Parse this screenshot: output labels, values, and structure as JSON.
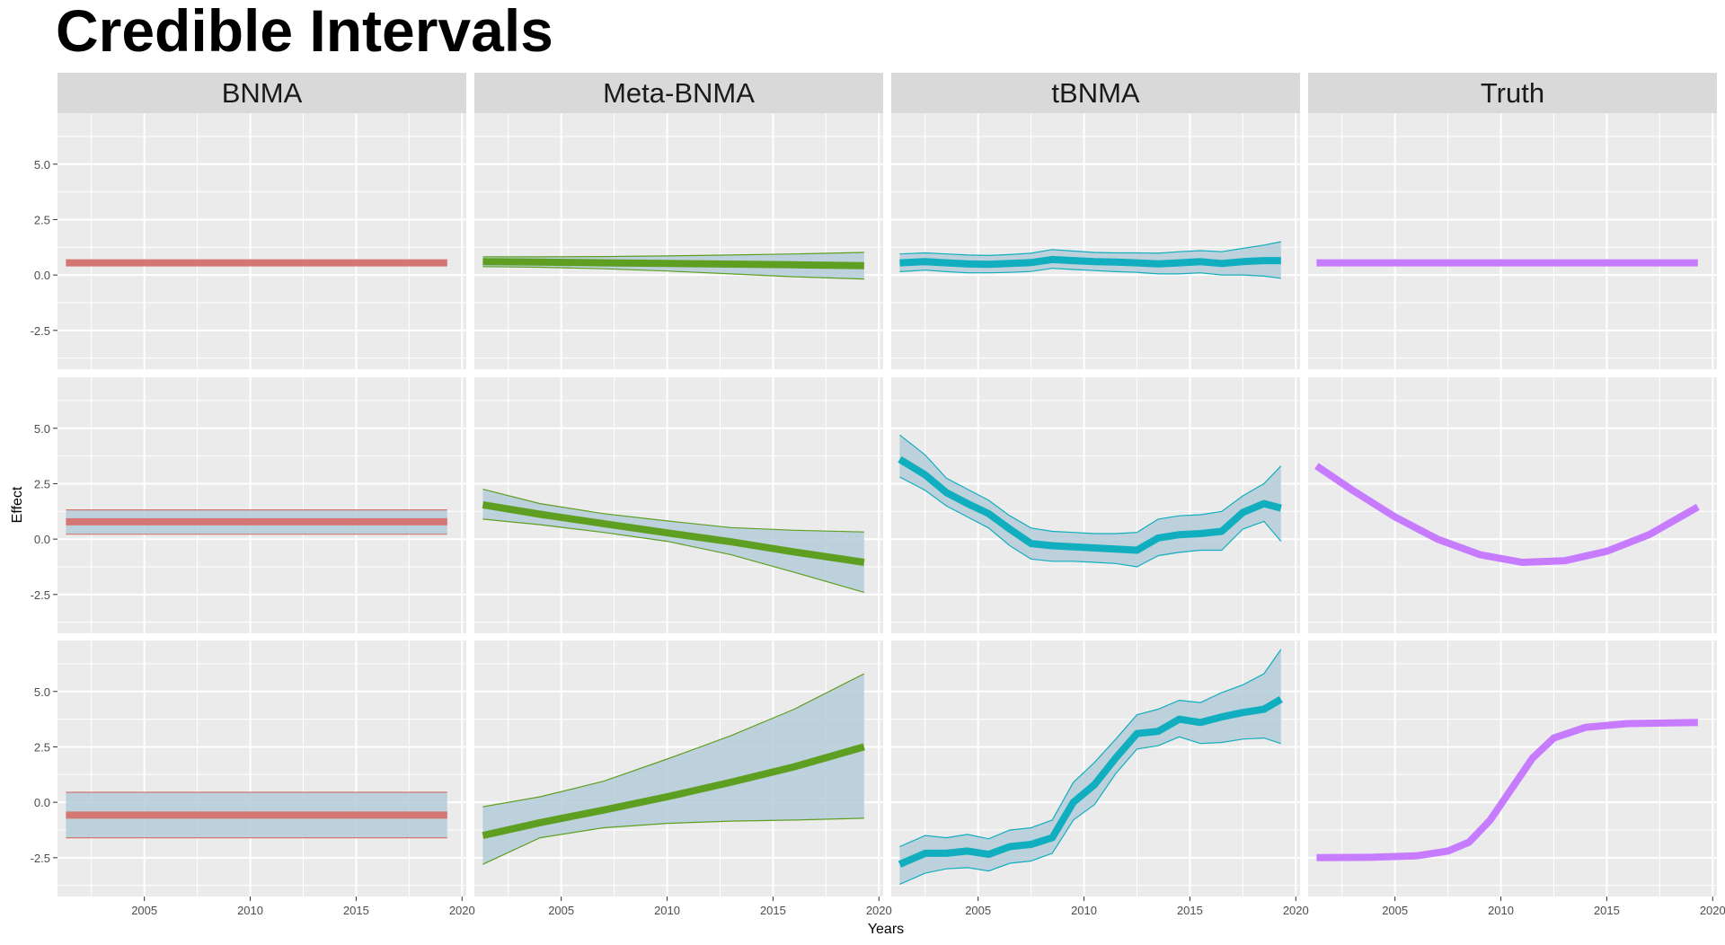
{
  "title": "Credible Intervals",
  "chart_data": {
    "type": "line",
    "title": "Credible Intervals",
    "xlabel": "Years",
    "ylabel": "Effect",
    "xlim": [
      2000.9,
      2020.2
    ],
    "ylim": [
      -4.25,
      7.3
    ],
    "x_ticks": [
      2005,
      2010,
      2015,
      2020
    ],
    "x_tick_labels": [
      "2005",
      "2010",
      "2015",
      "2020"
    ],
    "y_ticks": [
      -2.5,
      0,
      2.5,
      5
    ],
    "y_tick_labels": [
      "-2.5",
      "0.0",
      "2.5",
      "5.0"
    ],
    "grid": true,
    "legend": "none",
    "facet_columns": [
      "BNMA",
      "Meta-BNMA",
      "tBNMA",
      "Truth"
    ],
    "colors": {
      "BNMA": "#D47774",
      "Meta-BNMA": "#5E9F22",
      "tBNMA": "#10AEBE",
      "Truth": "#C77CFF",
      "band_fill": "#B4CCD8",
      "panel_bg": "#EBEBEB",
      "strip_bg": "#D9D9D9"
    },
    "rows": [
      {
        "BNMA": {
          "x": [
            2001.3,
            2019.3
          ],
          "y": [
            0.55,
            0.55
          ]
        },
        "Meta-BNMA": {
          "x": [
            2001.3,
            2004,
            2007,
            2010,
            2013,
            2016,
            2019.3
          ],
          "y": [
            0.6,
            0.58,
            0.55,
            0.52,
            0.49,
            0.46,
            0.42
          ],
          "lower": [
            0.38,
            0.35,
            0.28,
            0.18,
            0.05,
            -0.08,
            -0.18
          ],
          "upper": [
            0.82,
            0.82,
            0.83,
            0.86,
            0.9,
            0.95,
            1.02
          ]
        },
        "tBNMA": {
          "x": [
            2001.3,
            2002.5,
            2003.5,
            2004.5,
            2005.5,
            2006.5,
            2007.5,
            2008.5,
            2009.5,
            2010.5,
            2011.5,
            2012.5,
            2013.5,
            2014.5,
            2015.5,
            2016.5,
            2017.5,
            2018.5,
            2019.3
          ],
          "y": [
            0.55,
            0.6,
            0.55,
            0.5,
            0.48,
            0.52,
            0.56,
            0.7,
            0.65,
            0.6,
            0.58,
            0.55,
            0.5,
            0.55,
            0.6,
            0.52,
            0.6,
            0.65,
            0.65
          ],
          "lower": [
            0.15,
            0.22,
            0.15,
            0.1,
            0.1,
            0.12,
            0.16,
            0.3,
            0.25,
            0.2,
            0.15,
            0.12,
            0.05,
            0.05,
            0.1,
            0.0,
            0.0,
            -0.05,
            -0.15
          ],
          "upper": [
            0.95,
            1.0,
            0.95,
            0.9,
            0.88,
            0.92,
            0.98,
            1.15,
            1.08,
            1.02,
            1.0,
            1.0,
            0.98,
            1.05,
            1.1,
            1.05,
            1.2,
            1.35,
            1.5
          ]
        },
        "Truth": {
          "x": [
            2001.3,
            2019.3
          ],
          "y": [
            0.55,
            0.55
          ]
        }
      },
      {
        "BNMA": {
          "x": [
            2001.3,
            2019.3
          ],
          "y": [
            0.78,
            0.78
          ],
          "lower": [
            0.22,
            0.22
          ],
          "upper": [
            1.32,
            1.32
          ]
        },
        "Meta-BNMA": {
          "x": [
            2001.3,
            2004,
            2007,
            2010,
            2013,
            2016,
            2019.3
          ],
          "y": [
            1.55,
            1.12,
            0.7,
            0.28,
            -0.12,
            -0.58,
            -1.05
          ],
          "lower": [
            0.9,
            0.65,
            0.3,
            -0.1,
            -0.7,
            -1.5,
            -2.4
          ],
          "upper": [
            2.25,
            1.6,
            1.15,
            0.82,
            0.52,
            0.4,
            0.32
          ]
        },
        "tBNMA": {
          "x": [
            2001.3,
            2002.5,
            2003.5,
            2004.5,
            2005.5,
            2006.5,
            2007.5,
            2008.5,
            2009.5,
            2010.5,
            2011.5,
            2012.5,
            2013.5,
            2014.5,
            2015.5,
            2016.5,
            2017.5,
            2018.5,
            2019.3
          ],
          "y": [
            3.6,
            2.9,
            2.1,
            1.6,
            1.15,
            0.45,
            -0.2,
            -0.3,
            -0.35,
            -0.4,
            -0.45,
            -0.5,
            0.05,
            0.2,
            0.25,
            0.35,
            1.2,
            1.6,
            1.4
          ],
          "lower": [
            2.8,
            2.2,
            1.5,
            1.0,
            0.5,
            -0.3,
            -0.9,
            -1.0,
            -1.0,
            -1.05,
            -1.1,
            -1.25,
            -0.75,
            -0.6,
            -0.5,
            -0.5,
            0.45,
            0.8,
            -0.1
          ],
          "upper": [
            4.7,
            3.8,
            2.75,
            2.25,
            1.75,
            1.05,
            0.5,
            0.35,
            0.3,
            0.25,
            0.25,
            0.3,
            0.9,
            1.05,
            1.1,
            1.25,
            1.95,
            2.5,
            3.3
          ]
        },
        "Truth": {
          "x": [
            2001.3,
            2003,
            2005,
            2007,
            2009,
            2011,
            2013,
            2015,
            2017,
            2019.3
          ],
          "y": [
            3.3,
            2.2,
            1.0,
            0.0,
            -0.7,
            -1.05,
            -0.98,
            -0.55,
            0.2,
            1.45
          ]
        }
      },
      {
        "BNMA": {
          "x": [
            2001.3,
            2019.3
          ],
          "y": [
            -0.58,
            -0.58
          ],
          "lower": [
            -1.6,
            -1.6
          ],
          "upper": [
            0.45,
            0.45
          ]
        },
        "Meta-BNMA": {
          "x": [
            2001.3,
            2004,
            2007,
            2010,
            2013,
            2016,
            2019.3
          ],
          "y": [
            -1.5,
            -0.92,
            -0.35,
            0.25,
            0.9,
            1.6,
            2.5
          ],
          "lower": [
            -2.8,
            -1.6,
            -1.15,
            -0.95,
            -0.85,
            -0.8,
            -0.72
          ],
          "upper": [
            -0.2,
            0.25,
            0.95,
            1.95,
            3.0,
            4.2,
            5.8
          ]
        },
        "tBNMA": {
          "x": [
            2001.3,
            2002.5,
            2003.5,
            2004.5,
            2005.5,
            2006.5,
            2007.5,
            2008.5,
            2009.5,
            2010.5,
            2011.5,
            2012.5,
            2013.5,
            2014.5,
            2015.5,
            2016.5,
            2017.5,
            2018.5,
            2019.3
          ],
          "y": [
            -2.8,
            -2.3,
            -2.3,
            -2.2,
            -2.35,
            -2.0,
            -1.9,
            -1.6,
            0.0,
            0.8,
            2.0,
            3.1,
            3.2,
            3.75,
            3.6,
            3.85,
            4.05,
            4.2,
            4.65
          ],
          "lower": [
            -3.7,
            -3.2,
            -3.0,
            -2.95,
            -3.1,
            -2.75,
            -2.65,
            -2.3,
            -0.8,
            -0.1,
            1.3,
            2.4,
            2.55,
            2.95,
            2.65,
            2.7,
            2.85,
            2.9,
            2.65
          ],
          "upper": [
            -2.0,
            -1.5,
            -1.6,
            -1.45,
            -1.65,
            -1.25,
            -1.15,
            -0.8,
            0.9,
            1.8,
            2.85,
            3.95,
            4.2,
            4.6,
            4.5,
            4.95,
            5.3,
            5.8,
            6.9
          ]
        },
        "Truth": {
          "x": [
            2001.3,
            2004,
            2006,
            2007.5,
            2008.5,
            2009.5,
            2010.5,
            2011.5,
            2012.5,
            2014,
            2016,
            2019.3
          ],
          "y": [
            -2.5,
            -2.48,
            -2.42,
            -2.2,
            -1.8,
            -0.8,
            0.6,
            2.0,
            2.9,
            3.38,
            3.55,
            3.6
          ]
        }
      }
    ]
  }
}
